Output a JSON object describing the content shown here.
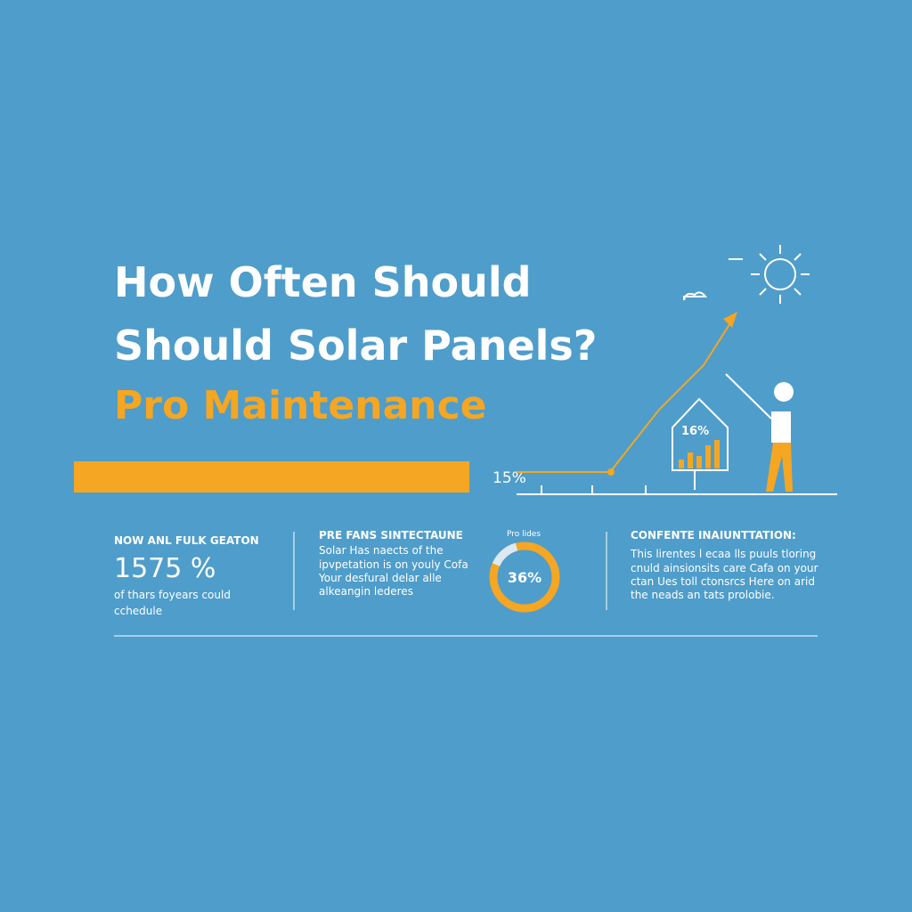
{
  "header": {
    "title_lines": [
      "How Often Should",
      "Should Solar Panels?"
    ],
    "subtitle": "Pro Maintenance"
  },
  "illustration": {
    "baseline_label": "15%",
    "house_label": "16%"
  },
  "columns": [
    {
      "heading": "NOW ANL FULK GEATON",
      "figure": "1575 %",
      "lines": [
        "of thars foyears could",
        "cchedule"
      ]
    },
    {
      "heading": "PRE FANS SINTECTAUNE",
      "lines": [
        "Solar Has naects of the",
        "ipvpetation is on youly Cofa",
        "Your desfural delar alle",
        "alkeangin lederes"
      ]
    },
    {
      "heading": "Pro lides",
      "figure": "36%"
    },
    {
      "heading": "CONFENTE INAIUNTTATION:",
      "lines": [
        "This lirentes l ecaa lls puuls tloring",
        "cnuld ainsionsits care Cafa on your",
        "ctan Ues toll ctonsrcs Here on arid",
        "the neads an tats prolobie."
      ]
    }
  ]
}
